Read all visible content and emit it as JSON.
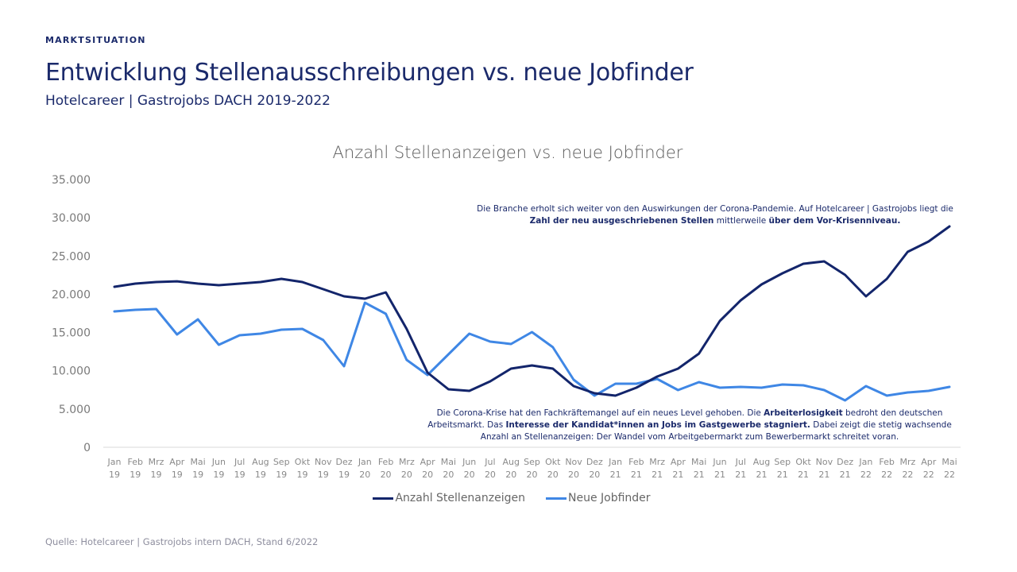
{
  "header": {
    "section_label": "MARKTSITUATION",
    "title": "Entwicklung Stellenausschreibungen vs. neue Jobfinder",
    "subtitle": "Hotelcareer | Gastrojobs DACH 2019-2022"
  },
  "annotations": {
    "top": {
      "parts": [
        {
          "text": "Die Branche erholt sich weiter von den Auswirkungen der Corona-Pandemie. Auf Hotelcareer | Gastrojobs liegt die ",
          "bold": false
        },
        {
          "text": "Zahl der neu ausgeschriebenen Stellen",
          "bold": true
        },
        {
          "text": " mittlerweile ",
          "bold": false
        },
        {
          "text": "über dem Vor-Krisenniveau.",
          "bold": true
        }
      ]
    },
    "bottom": {
      "parts": [
        {
          "text": "Die Corona-Krise hat den Fachkräftemangel auf ein neues Level gehoben. Die ",
          "bold": false
        },
        {
          "text": "Arbeiterlosigkeit",
          "bold": true
        },
        {
          "text": " bedroht den deutschen Arbeitsmarkt. Das ",
          "bold": false
        },
        {
          "text": "Interesse der Kandidat*innen an Jobs im Gastgewerbe stagniert.",
          "bold": true
        },
        {
          "text": " Dabei zeigt die stetig wachsende Anzahl an Stellenanzeigen: Der Wandel vom Arbeitgebermarkt zum Bewerbermarkt schreitet voran.",
          "bold": false
        }
      ]
    }
  },
  "footer": {
    "source": "Quelle: Hotelcareer  |  Gastrojobs intern DACH, Stand 6/2022"
  },
  "chart_data": {
    "type": "line",
    "title": "Anzahl Stellenanzeigen vs. neue Jobfinder",
    "xlabel": "",
    "ylabel": "",
    "ylim": [
      0,
      35000
    ],
    "yticks": [
      0,
      5000,
      10000,
      15000,
      20000,
      25000,
      30000,
      35000
    ],
    "ytick_labels": [
      "0",
      "5.000",
      "10.000",
      "15.000",
      "20.000",
      "25.000",
      "30.000",
      "35.000"
    ],
    "grid": false,
    "legend_position": "bottom-center",
    "categories": [
      {
        "month": "Jan",
        "year": "19"
      },
      {
        "month": "Feb",
        "year": "19"
      },
      {
        "month": "Mrz",
        "year": "19"
      },
      {
        "month": "Apr",
        "year": "19"
      },
      {
        "month": "Mai",
        "year": "19"
      },
      {
        "month": "Jun",
        "year": "19"
      },
      {
        "month": "Jul",
        "year": "19"
      },
      {
        "month": "Aug",
        "year": "19"
      },
      {
        "month": "Sep",
        "year": "19"
      },
      {
        "month": "Okt",
        "year": "19"
      },
      {
        "month": "Nov",
        "year": "19"
      },
      {
        "month": "Dez",
        "year": "19"
      },
      {
        "month": "Jan",
        "year": "20"
      },
      {
        "month": "Feb",
        "year": "20"
      },
      {
        "month": "Mrz",
        "year": "20"
      },
      {
        "month": "Apr",
        "year": "20"
      },
      {
        "month": "Mai",
        "year": "20"
      },
      {
        "month": "Jun",
        "year": "20"
      },
      {
        "month": "Jul",
        "year": "20"
      },
      {
        "month": "Aug",
        "year": "20"
      },
      {
        "month": "Sep",
        "year": "20"
      },
      {
        "month": "Okt",
        "year": "20"
      },
      {
        "month": "Nov",
        "year": "20"
      },
      {
        "month": "Dez",
        "year": "20"
      },
      {
        "month": "Jan",
        "year": "21"
      },
      {
        "month": "Feb",
        "year": "21"
      },
      {
        "month": "Mrz",
        "year": "21"
      },
      {
        "month": "Apr",
        "year": "21"
      },
      {
        "month": "Mai",
        "year": "21"
      },
      {
        "month": "Jun",
        "year": "21"
      },
      {
        "month": "Jul",
        "year": "21"
      },
      {
        "month": "Aug",
        "year": "21"
      },
      {
        "month": "Sep",
        "year": "21"
      },
      {
        "month": "Okt",
        "year": "21"
      },
      {
        "month": "Nov",
        "year": "21"
      },
      {
        "month": "Dez",
        "year": "21"
      },
      {
        "month": "Jan",
        "year": "22"
      },
      {
        "month": "Feb",
        "year": "22"
      },
      {
        "month": "Mrz",
        "year": "22"
      },
      {
        "month": "Apr",
        "year": "22"
      },
      {
        "month": "Mai",
        "year": "22"
      }
    ],
    "series": [
      {
        "name": "Anzahl Stellenanzeigen",
        "color": "#13256b",
        "values": [
          20980,
          21390,
          21600,
          21700,
          21390,
          21190,
          21390,
          21600,
          22020,
          21600,
          20670,
          19730,
          19420,
          20250,
          15470,
          9760,
          7580,
          7370,
          8620,
          10280,
          10700,
          10280,
          8000,
          7060,
          6750,
          7790,
          9240,
          10280,
          12250,
          16510,
          19210,
          21290,
          22740,
          23990,
          24300,
          22540,
          19730,
          22020,
          25550,
          26900,
          28870
        ]
      },
      {
        "name": "Neue Jobfinder",
        "color": "#3f87e5",
        "values": [
          17760,
          17970,
          18070,
          14750,
          16720,
          13400,
          14640,
          14850,
          15370,
          15470,
          14020,
          10590,
          18900,
          17450,
          11420,
          9450,
          12150,
          14850,
          13810,
          13500,
          15060,
          13090,
          8830,
          6750,
          8310,
          8310,
          8930,
          7480,
          8520,
          7790,
          7890,
          7790,
          8200,
          8100,
          7480,
          6130,
          8000,
          6750,
          7170,
          7370,
          7890
        ]
      }
    ]
  }
}
